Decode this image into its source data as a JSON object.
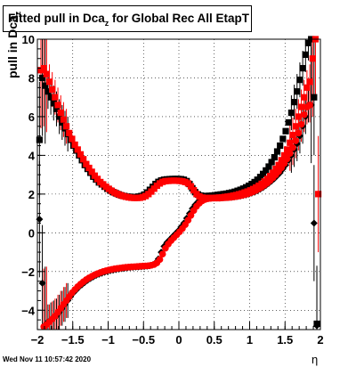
{
  "title_main": "Fitted pull in Dca",
  "title_sub": "z",
  "title_rest": " for Global Rec All EtapT",
  "ylabel_main": "pull in Dca",
  "ylabel_sub": "z",
  "xlabel": "η",
  "timestamp": "Wed Nov 11 10:57:42 2020",
  "chart_data": {
    "type": "scatter",
    "xlim": [
      -2,
      2
    ],
    "ylim": [
      -5,
      10
    ],
    "grid": true,
    "x_ticks": [
      -2,
      -1.5,
      -1,
      -0.5,
      0,
      0.5,
      1,
      1.5,
      2
    ],
    "x_tick_labels": [
      "−2",
      "−1.5",
      "−1",
      "−0.5",
      "0",
      "0.5",
      "1",
      "1.5",
      "2"
    ],
    "y_ticks": [
      -4,
      -2,
      0,
      2,
      4,
      6,
      8,
      10
    ],
    "y_tick_labels": [
      "−4",
      "−2",
      "0",
      "2",
      "4",
      "6",
      "8",
      "10"
    ],
    "series": [
      {
        "marker": "square",
        "color": "#000000",
        "x": [
          -1.97,
          -1.93,
          -1.89,
          -1.85,
          -1.81,
          -1.77,
          -1.73,
          -1.69,
          -1.65,
          -1.61,
          -1.57,
          -1.53,
          -1.49,
          -1.45,
          -1.41,
          -1.37,
          -1.33,
          -1.29,
          -1.25,
          -1.21,
          -1.17,
          -1.13,
          -1.09,
          -1.05,
          -1.01,
          -0.97,
          -0.93,
          -0.89,
          -0.85,
          -0.81,
          -0.77,
          -0.73,
          -0.69,
          -0.65,
          -0.61,
          -0.57,
          -0.53,
          -0.49,
          -0.45,
          -0.41,
          -0.37,
          -0.33,
          -0.29,
          -0.25,
          -0.21,
          -0.17,
          -0.13,
          -0.09,
          -0.05,
          -0.01,
          0.03,
          0.07,
          0.11,
          0.15,
          0.19,
          0.23,
          0.27,
          0.31,
          0.35,
          0.39,
          0.43,
          0.47,
          0.51,
          0.55,
          0.59,
          0.63,
          0.67,
          0.71,
          0.75,
          0.79,
          0.83,
          0.87,
          0.91,
          0.95,
          0.99,
          1.03,
          1.07,
          1.11,
          1.15,
          1.19,
          1.23,
          1.27,
          1.31,
          1.35,
          1.39,
          1.43,
          1.47,
          1.51,
          1.55,
          1.59,
          1.63,
          1.67,
          1.71,
          1.75,
          1.79,
          1.83,
          1.87,
          1.91,
          1.95
        ],
        "y": [
          4.8,
          8.0,
          7.6,
          7.3,
          7.0,
          6.7,
          6.4,
          6.0,
          5.7,
          5.4,
          5.1,
          4.8,
          4.5,
          4.25,
          4.0,
          3.75,
          3.5,
          3.3,
          3.1,
          2.9,
          2.75,
          2.6,
          2.5,
          2.38,
          2.27,
          2.18,
          2.1,
          2.04,
          1.98,
          1.93,
          1.9,
          1.87,
          1.86,
          1.85,
          1.85,
          1.87,
          1.9,
          1.97,
          2.08,
          2.22,
          2.37,
          2.52,
          2.63,
          2.7,
          2.74,
          2.76,
          2.77,
          2.78,
          2.78,
          2.78,
          2.77,
          2.74,
          2.67,
          2.52,
          2.3,
          2.1,
          1.98,
          1.92,
          1.9,
          1.9,
          1.91,
          1.92,
          1.94,
          1.96,
          1.98,
          2.0,
          2.02,
          2.05,
          2.08,
          2.12,
          2.17,
          2.22,
          2.28,
          2.35,
          2.43,
          2.52,
          2.62,
          2.74,
          2.88,
          3.04,
          3.22,
          3.42,
          3.65,
          3.9,
          4.2,
          4.5,
          4.85,
          5.25,
          5.7,
          6.2,
          6.75,
          7.3,
          7.9,
          8.5,
          9.2,
          9.8,
          10.0,
          7.0,
          -4.7
        ]
      },
      {
        "marker": "diamond",
        "color": "#000000",
        "x": [
          -1.97,
          -1.93,
          -1.89,
          -1.85,
          -1.81,
          -1.77,
          -1.73,
          -1.69,
          -1.65,
          -1.61,
          -1.57,
          -1.53,
          -1.49,
          -1.45,
          -1.41,
          -1.37,
          -1.33,
          -1.29,
          -1.25,
          -1.21,
          -1.17,
          -1.13,
          -1.09,
          -1.05,
          -1.01,
          -0.97,
          -0.93,
          -0.89,
          -0.85,
          -0.81,
          -0.77,
          -0.73,
          -0.69,
          -0.65,
          -0.61,
          -0.57,
          -0.53,
          -0.49,
          -0.45,
          -0.41,
          -0.37,
          -0.33,
          -0.29,
          -0.25,
          -0.21,
          -0.17,
          -0.13,
          -0.09,
          -0.05,
          -0.01,
          0.03,
          0.07,
          0.11,
          0.15,
          0.19,
          0.23,
          0.27,
          0.31,
          0.35,
          0.39,
          0.43,
          0.47,
          0.51,
          0.55,
          0.59,
          0.63,
          0.67,
          0.71,
          0.75,
          0.79,
          0.83,
          0.87,
          0.91,
          0.95,
          0.99,
          1.03,
          1.07,
          1.11,
          1.15,
          1.19,
          1.23,
          1.27,
          1.31,
          1.35,
          1.39,
          1.43,
          1.47,
          1.51,
          1.55,
          1.59,
          1.63,
          1.67,
          1.71,
          1.75,
          1.79,
          1.83,
          1.87,
          1.91,
          1.95
        ],
        "y": [
          0.7,
          -2.6,
          -4.75,
          -4.6,
          -4.5,
          -4.4,
          -4.3,
          -4.1,
          -3.9,
          -3.7,
          -3.5,
          -3.3,
          -3.1,
          -2.95,
          -2.8,
          -2.68,
          -2.56,
          -2.45,
          -2.36,
          -2.28,
          -2.2,
          -2.14,
          -2.09,
          -2.04,
          -2.0,
          -1.96,
          -1.93,
          -1.9,
          -1.87,
          -1.85,
          -1.83,
          -1.81,
          -1.79,
          -1.78,
          -1.77,
          -1.76,
          -1.75,
          -1.74,
          -1.72,
          -1.7,
          -1.65,
          -1.55,
          -1.35,
          -1.0,
          -0.7,
          -0.5,
          -0.35,
          -0.2,
          -0.05,
          0.1,
          0.3,
          0.5,
          0.75,
          1.0,
          1.25,
          1.45,
          1.6,
          1.7,
          1.75,
          1.78,
          1.8,
          1.8,
          1.8,
          1.8,
          1.8,
          1.81,
          1.82,
          1.83,
          1.84,
          1.86,
          1.88,
          1.9,
          1.93,
          1.96,
          2.0,
          2.05,
          2.1,
          2.17,
          2.25,
          2.34,
          2.44,
          2.55,
          2.67,
          2.8,
          2.95,
          3.1,
          3.3,
          3.5,
          3.75,
          4.0,
          4.3,
          4.6,
          5.0,
          5.5,
          6.0,
          6.6,
          6.6,
          0.5,
          -4.8
        ]
      },
      {
        "marker": "square",
        "color": "#ff0000",
        "x": [
          -1.95,
          -1.91,
          -1.87,
          -1.83,
          -1.79,
          -1.75,
          -1.71,
          -1.67,
          -1.63,
          -1.59,
          -1.55,
          -1.51,
          -1.47,
          -1.43,
          -1.39,
          -1.35,
          -1.31,
          -1.27,
          -1.23,
          -1.19,
          -1.15,
          -1.11,
          -1.07,
          -1.03,
          -0.99,
          -0.95,
          -0.91,
          -0.87,
          -0.83,
          -0.79,
          -0.75,
          -0.71,
          -0.67,
          -0.63,
          -0.59,
          -0.55,
          -0.51,
          -0.47,
          -0.43,
          -0.39,
          -0.35,
          -0.31,
          -0.27,
          -0.23,
          -0.19,
          -0.15,
          -0.11,
          -0.07,
          -0.03,
          0.01,
          0.05,
          0.09,
          0.13,
          0.17,
          0.21,
          0.25,
          0.29,
          0.33,
          0.37,
          0.41,
          0.45,
          0.49,
          0.53,
          0.57,
          0.61,
          0.65,
          0.69,
          0.73,
          0.77,
          0.81,
          0.85,
          0.89,
          0.93,
          0.97,
          1.01,
          1.05,
          1.09,
          1.13,
          1.17,
          1.21,
          1.25,
          1.29,
          1.33,
          1.37,
          1.41,
          1.45,
          1.49,
          1.53,
          1.57,
          1.61,
          1.65,
          1.69,
          1.73,
          1.77,
          1.81,
          1.85,
          1.89,
          1.93,
          1.97
        ],
        "y": [
          8.4,
          8.5,
          8.2,
          7.8,
          7.4,
          7.0,
          6.6,
          6.2,
          5.85,
          5.5,
          5.15,
          4.85,
          4.55,
          4.3,
          4.05,
          3.8,
          3.55,
          3.35,
          3.15,
          2.95,
          2.78,
          2.62,
          2.5,
          2.38,
          2.27,
          2.17,
          2.08,
          2.01,
          1.95,
          1.9,
          1.86,
          1.83,
          1.81,
          1.8,
          1.8,
          1.81,
          1.84,
          1.9,
          2.0,
          2.13,
          2.28,
          2.43,
          2.55,
          2.63,
          2.67,
          2.68,
          2.69,
          2.69,
          2.69,
          2.68,
          2.66,
          2.62,
          2.55,
          2.4,
          2.2,
          2.0,
          1.88,
          1.82,
          1.8,
          1.8,
          1.8,
          1.8,
          1.81,
          1.82,
          1.83,
          1.85,
          1.87,
          1.89,
          1.92,
          1.95,
          1.99,
          2.03,
          2.08,
          2.13,
          2.19,
          2.26,
          2.34,
          2.43,
          2.53,
          2.65,
          2.78,
          2.93,
          3.1,
          3.3,
          3.5,
          3.75,
          4.0,
          4.3,
          4.65,
          5.05,
          5.5,
          6.0,
          6.5,
          7.0,
          7.5,
          7.8,
          9.0,
          10.0,
          2.0
        ]
      },
      {
        "marker": "circle",
        "color": "#ff0000",
        "x": [
          -1.91,
          -1.87,
          -1.83,
          -1.79,
          -1.75,
          -1.71,
          -1.67,
          -1.63,
          -1.59,
          -1.55,
          -1.51,
          -1.47,
          -1.43,
          -1.39,
          -1.35,
          -1.31,
          -1.27,
          -1.23,
          -1.19,
          -1.15,
          -1.11,
          -1.07,
          -1.03,
          -0.99,
          -0.95,
          -0.91,
          -0.87,
          -0.83,
          -0.79,
          -0.75,
          -0.71,
          -0.67,
          -0.63,
          -0.59,
          -0.55,
          -0.51,
          -0.47,
          -0.43,
          -0.39,
          -0.35,
          -0.31,
          -0.27,
          -0.23,
          -0.19,
          -0.15,
          -0.11,
          -0.07,
          -0.03,
          0.01,
          0.05,
          0.09,
          0.13,
          0.17,
          0.21,
          0.25,
          0.29,
          0.33,
          0.37,
          0.41,
          0.45,
          0.49,
          0.53,
          0.57,
          0.61,
          0.65,
          0.69,
          0.73,
          0.77,
          0.81,
          0.85,
          0.89,
          0.93,
          0.97,
          1.01,
          1.05,
          1.09,
          1.13,
          1.17,
          1.21,
          1.25,
          1.29,
          1.33,
          1.37,
          1.41,
          1.45,
          1.49,
          1.53,
          1.57,
          1.61,
          1.65,
          1.69,
          1.73,
          1.77,
          1.81,
          1.85
        ],
        "y": [
          -4.85,
          -4.75,
          -4.6,
          -4.45,
          -4.3,
          -4.1,
          -3.9,
          -3.7,
          -3.5,
          -3.3,
          -3.1,
          -2.93,
          -2.78,
          -2.65,
          -2.53,
          -2.42,
          -2.33,
          -2.25,
          -2.17,
          -2.11,
          -2.05,
          -2.0,
          -1.96,
          -1.92,
          -1.89,
          -1.86,
          -1.84,
          -1.82,
          -1.8,
          -1.78,
          -1.77,
          -1.76,
          -1.75,
          -1.74,
          -1.73,
          -1.72,
          -1.71,
          -1.7,
          -1.68,
          -1.64,
          -1.55,
          -1.38,
          -1.1,
          -0.8,
          -0.58,
          -0.4,
          -0.25,
          -0.1,
          0.05,
          0.22,
          0.42,
          0.65,
          0.9,
          1.15,
          1.37,
          1.53,
          1.65,
          1.72,
          1.76,
          1.78,
          1.79,
          1.79,
          1.79,
          1.8,
          1.81,
          1.82,
          1.83,
          1.85,
          1.87,
          1.9,
          1.93,
          1.97,
          2.01,
          2.06,
          2.12,
          2.19,
          2.27,
          2.36,
          2.46,
          2.57,
          2.7,
          2.84,
          3.0,
          3.17,
          3.36,
          3.58,
          3.82,
          4.1,
          4.4,
          4.75,
          5.15,
          5.6,
          6.1,
          6.5,
          6.6
        ]
      }
    ]
  }
}
